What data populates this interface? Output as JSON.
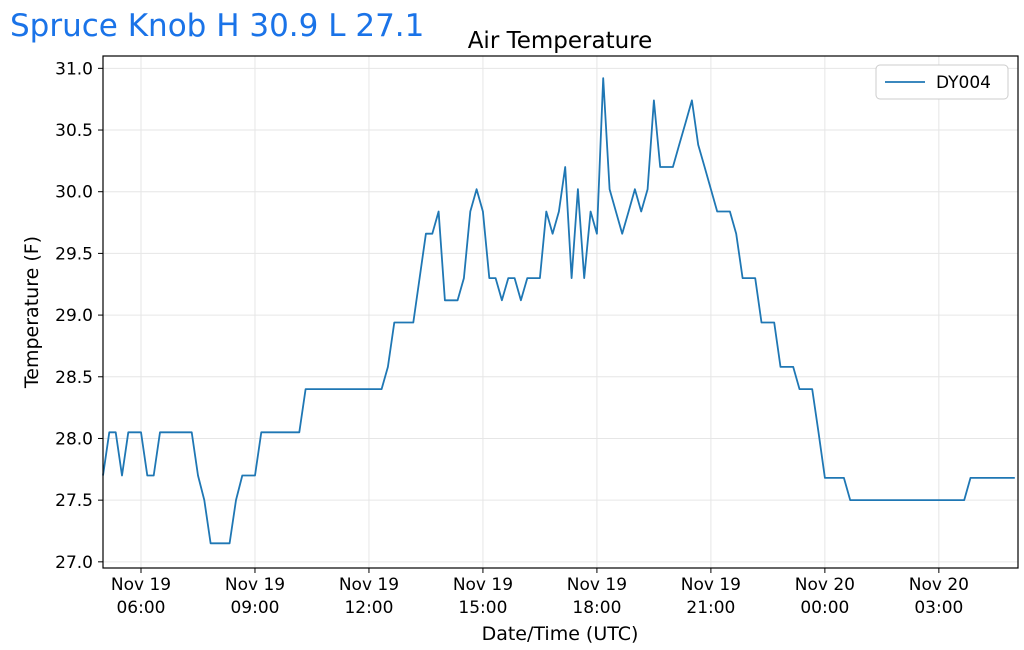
{
  "header": {
    "title": "Spruce Knob H 30.9 L 27.1"
  },
  "chart_data": {
    "type": "line",
    "title": "Air Temperature",
    "xlabel": "Date/Time (UTC)",
    "ylabel": "Temperature (F)",
    "ylim": [
      26.95,
      31.1
    ],
    "y_ticks": [
      "27.0",
      "27.5",
      "28.0",
      "28.5",
      "29.0",
      "29.5",
      "30.0",
      "30.5",
      "31.0"
    ],
    "xlim": [
      "2018-11-19 05:00",
      "2018-11-20 05:05"
    ],
    "x_ticks": [
      {
        "time": "2018-11-19 06:00",
        "date": "Nov 19",
        "clock": "06:00"
      },
      {
        "time": "2018-11-19 09:00",
        "date": "Nov 19",
        "clock": "09:00"
      },
      {
        "time": "2018-11-19 12:00",
        "date": "Nov 19",
        "clock": "12:00"
      },
      {
        "time": "2018-11-19 15:00",
        "date": "Nov 19",
        "clock": "15:00"
      },
      {
        "time": "2018-11-19 18:00",
        "date": "Nov 19",
        "clock": "18:00"
      },
      {
        "time": "2018-11-19 21:00",
        "date": "Nov 19",
        "clock": "21:00"
      },
      {
        "time": "2018-11-20 00:00",
        "date": "Nov 20",
        "clock": "00:00"
      },
      {
        "time": "2018-11-20 03:00",
        "date": "Nov 20",
        "clock": "03:00"
      }
    ],
    "grid": true,
    "legend_position": "top-right",
    "series": [
      {
        "name": "DY004",
        "color": "#1f77b4",
        "x": [
          "2018-11-19 05:00",
          "2018-11-19 05:10",
          "2018-11-19 05:20",
          "2018-11-19 05:30",
          "2018-11-19 05:40",
          "2018-11-19 05:50",
          "2018-11-19 06:00",
          "2018-11-19 06:10",
          "2018-11-19 06:20",
          "2018-11-19 06:30",
          "2018-11-19 06:40",
          "2018-11-19 06:50",
          "2018-11-19 07:00",
          "2018-11-19 07:10",
          "2018-11-19 07:20",
          "2018-11-19 07:30",
          "2018-11-19 07:40",
          "2018-11-19 07:50",
          "2018-11-19 08:00",
          "2018-11-19 08:10",
          "2018-11-19 08:20",
          "2018-11-19 08:30",
          "2018-11-19 08:40",
          "2018-11-19 08:50",
          "2018-11-19 09:00",
          "2018-11-19 09:10",
          "2018-11-19 09:20",
          "2018-11-19 09:30",
          "2018-11-19 09:40",
          "2018-11-19 09:50",
          "2018-11-19 10:00",
          "2018-11-19 10:10",
          "2018-11-19 10:20",
          "2018-11-19 10:30",
          "2018-11-19 10:40",
          "2018-11-19 10:50",
          "2018-11-19 11:00",
          "2018-11-19 11:10",
          "2018-11-19 11:20",
          "2018-11-19 11:30",
          "2018-11-19 11:40",
          "2018-11-19 11:50",
          "2018-11-19 12:00",
          "2018-11-19 12:10",
          "2018-11-19 12:20",
          "2018-11-19 12:30",
          "2018-11-19 12:40",
          "2018-11-19 12:50",
          "2018-11-19 13:00",
          "2018-11-19 13:10",
          "2018-11-19 13:20",
          "2018-11-19 13:30",
          "2018-11-19 13:40",
          "2018-11-19 13:50",
          "2018-11-19 14:00",
          "2018-11-19 14:10",
          "2018-11-19 14:20",
          "2018-11-19 14:30",
          "2018-11-19 14:40",
          "2018-11-19 14:50",
          "2018-11-19 15:00",
          "2018-11-19 15:10",
          "2018-11-19 15:20",
          "2018-11-19 15:30",
          "2018-11-19 15:40",
          "2018-11-19 15:50",
          "2018-11-19 16:00",
          "2018-11-19 16:10",
          "2018-11-19 16:20",
          "2018-11-19 16:30",
          "2018-11-19 16:40",
          "2018-11-19 16:50",
          "2018-11-19 17:00",
          "2018-11-19 17:10",
          "2018-11-19 17:20",
          "2018-11-19 17:30",
          "2018-11-19 17:40",
          "2018-11-19 17:50",
          "2018-11-19 18:00",
          "2018-11-19 18:10",
          "2018-11-19 18:20",
          "2018-11-19 18:30",
          "2018-11-19 18:40",
          "2018-11-19 18:50",
          "2018-11-19 19:00",
          "2018-11-19 19:10",
          "2018-11-19 19:20",
          "2018-11-19 19:30",
          "2018-11-19 19:40",
          "2018-11-19 19:50",
          "2018-11-19 20:00",
          "2018-11-19 20:10",
          "2018-11-19 20:20",
          "2018-11-19 20:30",
          "2018-11-19 20:40",
          "2018-11-19 20:50",
          "2018-11-19 21:00",
          "2018-11-19 21:10",
          "2018-11-19 21:20",
          "2018-11-19 21:30",
          "2018-11-19 21:40",
          "2018-11-19 21:50",
          "2018-11-19 22:00",
          "2018-11-19 22:10",
          "2018-11-19 22:20",
          "2018-11-19 22:30",
          "2018-11-19 22:40",
          "2018-11-19 22:50",
          "2018-11-19 23:00",
          "2018-11-19 23:10",
          "2018-11-19 23:20",
          "2018-11-19 23:30",
          "2018-11-19 23:40",
          "2018-11-19 23:50",
          "2018-11-20 00:00",
          "2018-11-20 00:10",
          "2018-11-20 00:20",
          "2018-11-20 00:30",
          "2018-11-20 00:40",
          "2018-11-20 00:50",
          "2018-11-20 01:00",
          "2018-11-20 01:10",
          "2018-11-20 01:20",
          "2018-11-20 01:30",
          "2018-11-20 01:40",
          "2018-11-20 01:50",
          "2018-11-20 02:00",
          "2018-11-20 02:10",
          "2018-11-20 02:20",
          "2018-11-20 02:30",
          "2018-11-20 02:40",
          "2018-11-20 02:50",
          "2018-11-20 03:00",
          "2018-11-20 03:10",
          "2018-11-20 03:20",
          "2018-11-20 03:30",
          "2018-11-20 03:40",
          "2018-11-20 03:50",
          "2018-11-20 04:00",
          "2018-11-20 04:10",
          "2018-11-20 04:20",
          "2018-11-20 04:30",
          "2018-11-20 04:40",
          "2018-11-20 04:50",
          "2018-11-20 05:00"
        ],
        "y": [
          27.7,
          28.05,
          28.05,
          27.7,
          28.05,
          28.05,
          28.05,
          27.7,
          27.7,
          28.05,
          28.05,
          28.05,
          28.05,
          28.05,
          28.05,
          27.7,
          27.5,
          27.15,
          27.15,
          27.15,
          27.15,
          27.5,
          27.7,
          27.7,
          27.7,
          28.05,
          28.05,
          28.05,
          28.05,
          28.05,
          28.05,
          28.05,
          28.4,
          28.4,
          28.4,
          28.4,
          28.4,
          28.4,
          28.4,
          28.4,
          28.4,
          28.4,
          28.4,
          28.4,
          28.4,
          28.58,
          28.94,
          28.94,
          28.94,
          28.94,
          29.3,
          29.66,
          29.66,
          29.84,
          29.12,
          29.12,
          29.12,
          29.3,
          29.84,
          30.02,
          29.84,
          29.3,
          29.3,
          29.12,
          29.3,
          29.3,
          29.12,
          29.3,
          29.3,
          29.3,
          29.84,
          29.66,
          29.84,
          30.2,
          29.3,
          30.02,
          29.3,
          29.84,
          29.66,
          30.92,
          30.02,
          29.84,
          29.66,
          29.84,
          30.02,
          29.84,
          30.02,
          30.74,
          30.2,
          30.2,
          30.2,
          30.38,
          30.56,
          30.74,
          30.38,
          30.2,
          30.02,
          29.84,
          29.84,
          29.84,
          29.66,
          29.3,
          29.3,
          29.3,
          28.94,
          28.94,
          28.94,
          28.58,
          28.58,
          28.58,
          28.4,
          28.4,
          28.4,
          28.05,
          27.68,
          27.68,
          27.68,
          27.68,
          27.5,
          27.5,
          27.5,
          27.5,
          27.5,
          27.5,
          27.5,
          27.5,
          27.5,
          27.5,
          27.5,
          27.5,
          27.5,
          27.5,
          27.5,
          27.5,
          27.5,
          27.5,
          27.5,
          27.68,
          27.68,
          27.68,
          27.68,
          27.68,
          27.68,
          27.68,
          27.68
        ]
      }
    ]
  }
}
